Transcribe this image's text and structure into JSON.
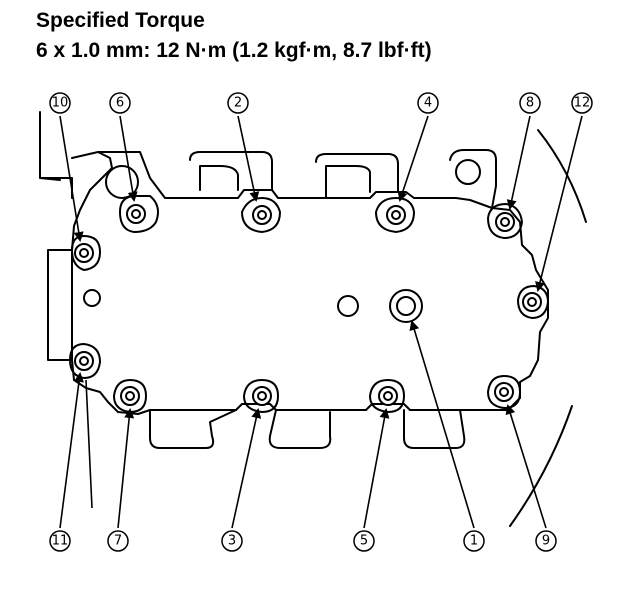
{
  "header": {
    "title": "Specified Torque",
    "spec": "6 x 1.0 mm: 12 N·m (1.2 kgf·m, 8.7 lbf·ft)"
  },
  "callouts": [
    {
      "id": "c1",
      "label": "1"
    },
    {
      "id": "c2",
      "label": "2"
    },
    {
      "id": "c3",
      "label": "3"
    },
    {
      "id": "c4",
      "label": "4"
    },
    {
      "id": "c5",
      "label": "5"
    },
    {
      "id": "c6",
      "label": "6"
    },
    {
      "id": "c7",
      "label": "7"
    },
    {
      "id": "c8",
      "label": "8"
    },
    {
      "id": "c9",
      "label": "9"
    },
    {
      "id": "c10",
      "label": "10"
    },
    {
      "id": "c11",
      "label": "11"
    },
    {
      "id": "c12",
      "label": "12"
    }
  ]
}
